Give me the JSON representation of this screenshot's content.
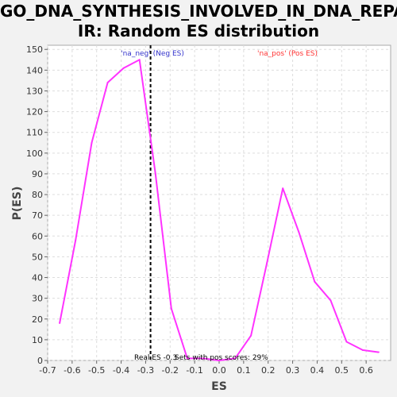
{
  "chart_data": {
    "type": "line",
    "title_line1": "GO_DNA_SYNTHESIS_INVOLVED_IN_DNA_REPA",
    "title_line2": "IR: Random ES distribution",
    "xlabel": "ES",
    "ylabel": "P(ES)",
    "xlim": [
      -0.7,
      0.7
    ],
    "ylim": [
      0,
      152
    ],
    "x_ticks": [
      -0.7,
      -0.6,
      -0.5,
      -0.4,
      -0.3,
      -0.2,
      -0.1,
      0.0,
      0.1,
      0.2,
      0.3,
      0.4,
      0.5,
      0.6
    ],
    "x_tick_labels": [
      "-0.7",
      "-0.6",
      "-0.5",
      "-0.4",
      "-0.3",
      "-0.2",
      "-0.1",
      "0.0",
      "0.1",
      "0.2",
      "0.3",
      "0.4",
      "0.5",
      "0.6"
    ],
    "y_ticks": [
      0,
      10,
      20,
      30,
      40,
      50,
      60,
      70,
      80,
      90,
      100,
      110,
      120,
      130,
      140,
      150
    ],
    "y_tick_labels": [
      "0",
      "10",
      "20",
      "30",
      "40",
      "50",
      "60",
      "70",
      "80",
      "90",
      "100",
      "110",
      "120",
      "130",
      "140",
      "150"
    ],
    "grid": true,
    "series": [
      {
        "color": "#ff33ff",
        "x": [
          -0.651,
          -0.586,
          -0.52,
          -0.455,
          -0.39,
          -0.325,
          -0.26,
          -0.195,
          -0.13,
          -0.065,
          0.0,
          0.065,
          0.13,
          0.195,
          0.26,
          0.325,
          0.39,
          0.455,
          0.52,
          0.586,
          0.651
        ],
        "y": [
          18,
          58,
          105,
          134,
          141,
          145,
          90,
          25,
          1,
          1,
          0,
          1,
          12,
          47,
          83,
          62,
          38,
          29,
          9,
          5,
          4
        ]
      }
    ],
    "real_es": -0.28,
    "annotations": {
      "neg_label": "'na_neg' (Neg ES)",
      "neg_color": "#3333cc",
      "pos_label": "'na_pos' (Pos ES)",
      "pos_color": "#ff3333",
      "real_es_label": "Real ES -0.3",
      "sets_label": "Sets with pos scores: 29%"
    }
  }
}
